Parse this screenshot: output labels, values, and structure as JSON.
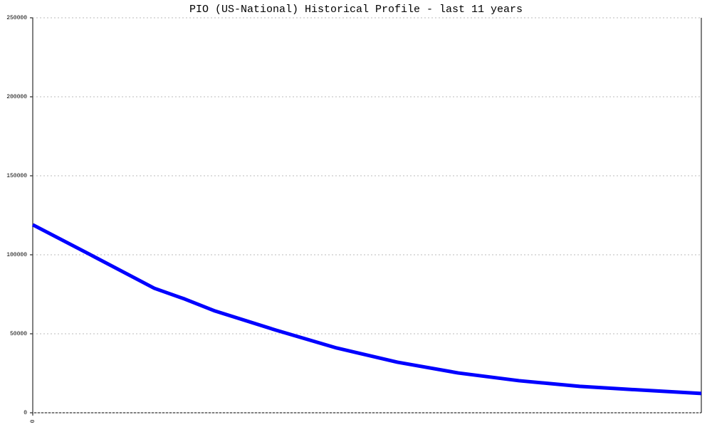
{
  "chart_data": {
    "type": "line",
    "title": "PIO (US-National) Historical Profile - last 11 years",
    "x": [
      0,
      1,
      2,
      2.5,
      3,
      4,
      5,
      6,
      7,
      8,
      9,
      10,
      11
    ],
    "series": [
      {
        "color": "#0000ff",
        "values": [
          119000,
          99000,
          78800,
          72000,
          64400,
          52300,
          41000,
          32000,
          25200,
          20300,
          16700,
          14400,
          12200
        ]
      }
    ],
    "xlim": [
      0,
      11
    ],
    "xticks": [
      0
    ],
    "ylim": [
      0,
      250000
    ],
    "yticks": [
      0,
      50000,
      100000,
      150000,
      200000,
      250000
    ],
    "grid": true
  }
}
